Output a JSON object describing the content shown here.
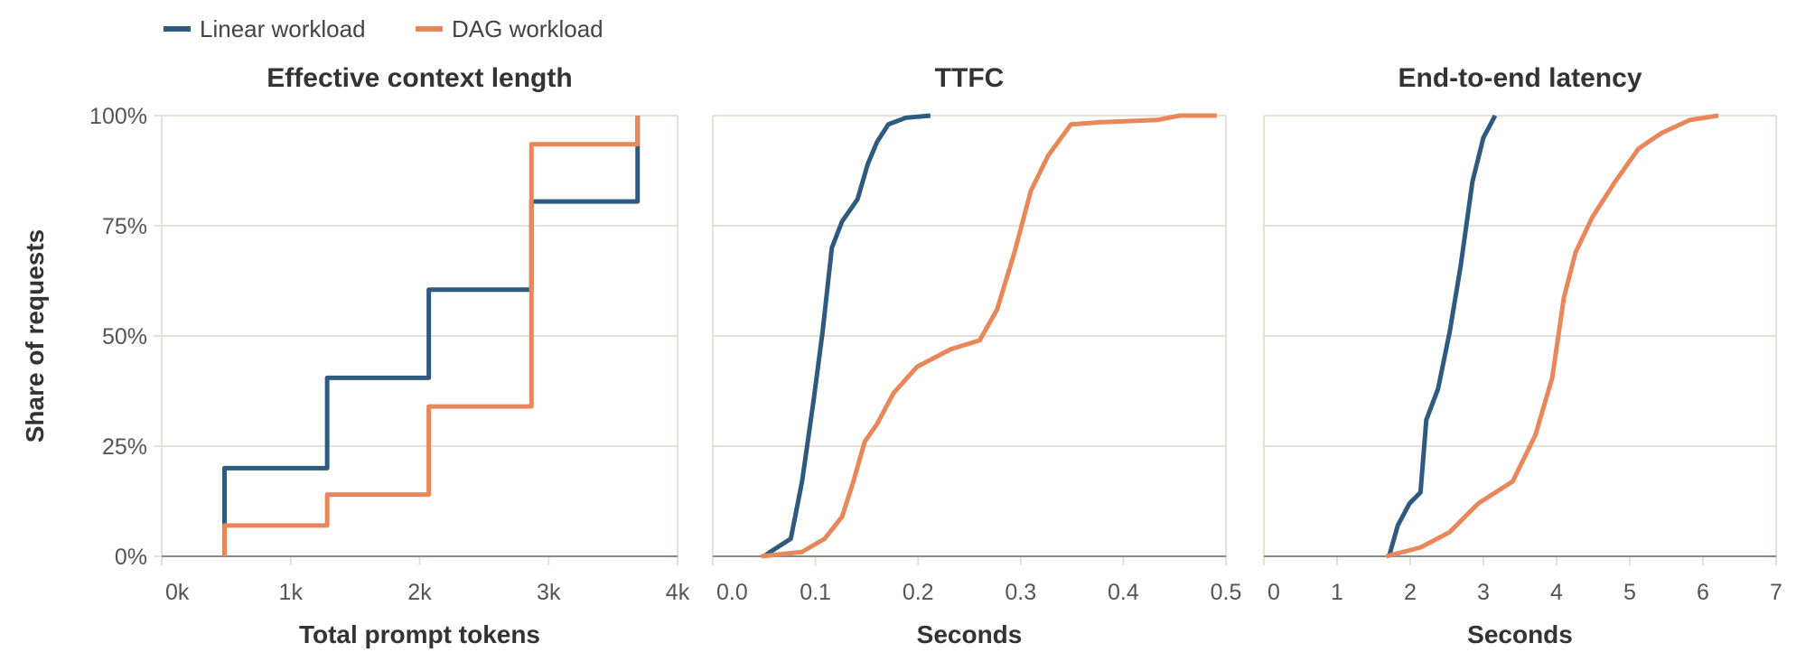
{
  "legend": [
    {
      "label": "Linear workload",
      "color": "#2e5a80"
    },
    {
      "label": "DAG workload",
      "color": "#e8875a"
    }
  ],
  "ylabel": "Share of requests",
  "colors": {
    "grid": "#e6e1d8",
    "axis": "#888888",
    "linear": "#2e5a80",
    "dag": "#e8875a"
  },
  "chart_data": [
    {
      "type": "line",
      "step": true,
      "title": "Effective context length",
      "xlabel": "Total prompt tokens",
      "ylabel": "Share of requests",
      "xlim": [
        0,
        4000
      ],
      "ylim": [
        0,
        100
      ],
      "xticks": [
        0,
        1000,
        2000,
        3000,
        4000
      ],
      "xtick_labels": [
        "0k",
        "1k",
        "2k",
        "3k",
        "4k"
      ],
      "yticks": [
        0,
        25,
        50,
        75,
        100
      ],
      "ytick_labels": [
        "0%",
        "25%",
        "50%",
        "75%",
        "100%"
      ],
      "grid": true,
      "series": [
        {
          "name": "Linear workload",
          "x": [
            487,
            1283,
            2071,
            2867,
            3690
          ],
          "y": [
            20,
            40.5,
            60.5,
            80.5,
            100
          ]
        },
        {
          "name": "DAG workload",
          "x": [
            487,
            1283,
            2071,
            2867,
            3690
          ],
          "y": [
            7,
            14,
            34,
            93.5,
            100
          ]
        }
      ]
    },
    {
      "type": "line",
      "title": "TTFC",
      "xlabel": "Seconds",
      "xlim": [
        0,
        0.5
      ],
      "ylim": [
        0,
        100
      ],
      "xticks": [
        0,
        0.1,
        0.2,
        0.3,
        0.4,
        0.5
      ],
      "xtick_labels": [
        "0.0",
        "0.1",
        "0.2",
        "0.3",
        "0.4",
        "0.5"
      ],
      "yticks": [
        0,
        25,
        50,
        75,
        100
      ],
      "grid": true,
      "series": [
        {
          "name": "Linear workload",
          "x": [
            0.05,
            0.056,
            0.076,
            0.087,
            0.098,
            0.107,
            0.116,
            0.126,
            0.141,
            0.151,
            0.16,
            0.171,
            0.188,
            0.212
          ],
          "y": [
            0,
            1,
            4,
            17,
            35,
            51,
            70,
            76,
            81,
            89,
            94,
            98,
            99.5,
            100
          ]
        },
        {
          "name": "DAG workload",
          "x": [
            0.047,
            0.087,
            0.109,
            0.126,
            0.137,
            0.148,
            0.16,
            0.176,
            0.199,
            0.232,
            0.26,
            0.277,
            0.294,
            0.31,
            0.327,
            0.349,
            0.377,
            0.433,
            0.455,
            0.491
          ],
          "y": [
            0,
            1,
            4,
            9,
            17,
            26,
            30,
            37,
            43,
            47,
            49,
            56,
            69,
            83,
            91,
            98,
            98.5,
            99,
            100,
            100
          ]
        }
      ]
    },
    {
      "type": "line",
      "title": "End-to-end latency",
      "xlabel": "Seconds",
      "xlim": [
        0,
        7
      ],
      "ylim": [
        0,
        100
      ],
      "xticks": [
        0,
        1,
        2,
        3,
        4,
        5,
        6,
        7
      ],
      "xtick_labels": [
        "0",
        "1",
        "2",
        "3",
        "4",
        "5",
        "6",
        "7"
      ],
      "yticks": [
        0,
        25,
        50,
        75,
        100
      ],
      "grid": true,
      "series": [
        {
          "name": "Linear workload",
          "x": [
            1.71,
            1.83,
            1.99,
            2.14,
            2.22,
            2.38,
            2.54,
            2.69,
            2.85,
            3.0,
            3.16
          ],
          "y": [
            0,
            7,
            12,
            14.5,
            31,
            38,
            51,
            66,
            85,
            95,
            100
          ]
        },
        {
          "name": "DAG workload",
          "x": [
            1.67,
            2.14,
            2.54,
            2.93,
            3.4,
            3.71,
            3.94,
            4.1,
            4.26,
            4.49,
            4.8,
            5.12,
            5.43,
            5.82,
            6.21
          ],
          "y": [
            0,
            2,
            5.5,
            12,
            17,
            27.5,
            40.5,
            58.7,
            69,
            77,
            85,
            92.5,
            96,
            99,
            100
          ]
        }
      ]
    }
  ]
}
